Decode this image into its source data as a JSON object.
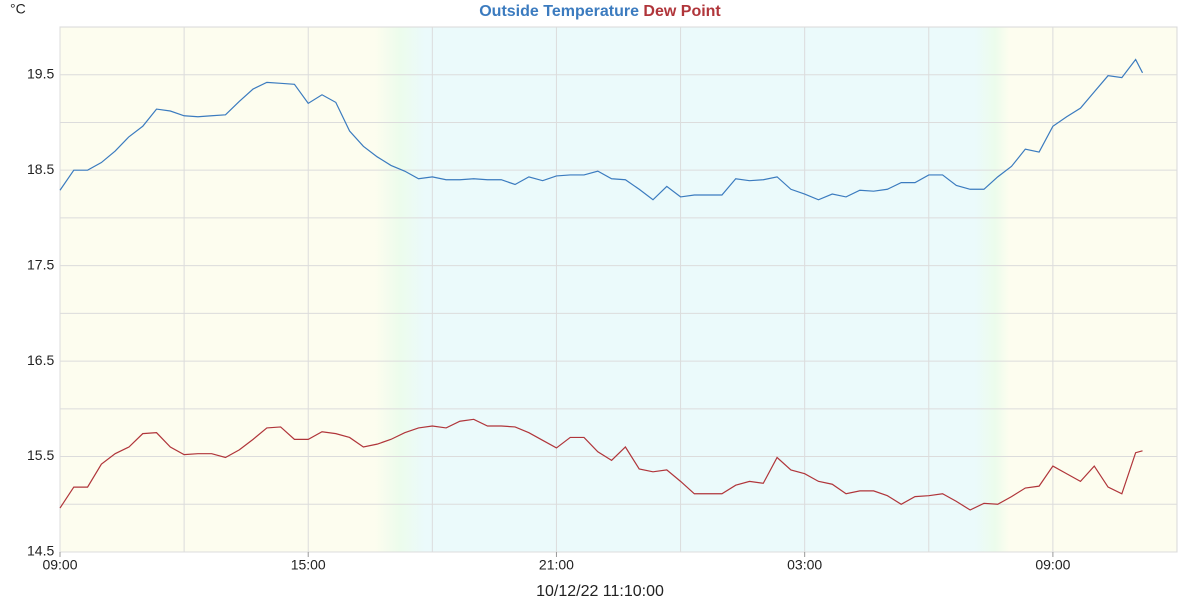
{
  "chart_data": {
    "type": "line",
    "y_unit": "°C",
    "xlabel": "10/12/22 11:10:00",
    "x": [
      0,
      20,
      40,
      60,
      80,
      100,
      120,
      140,
      160,
      180,
      200,
      220,
      240,
      260,
      280,
      300,
      320,
      340,
      360,
      380,
      400,
      420,
      440,
      460,
      480,
      500,
      520,
      540,
      560,
      580,
      600,
      620,
      640,
      660,
      680,
      700,
      720,
      740,
      760,
      780,
      800,
      820,
      840,
      860,
      880,
      900,
      920,
      940,
      960,
      980,
      1000,
      1020,
      1040,
      1060,
      1080,
      1100,
      1120,
      1140,
      1160,
      1180,
      1200,
      1220,
      1240,
      1260,
      1280,
      1300,
      1320,
      1340,
      1360,
      1380,
      1400,
      1420,
      1440,
      1460,
      1480,
      1500,
      1520,
      1540,
      1560,
      1570
    ],
    "series": [
      {
        "name": "Outside Temperature",
        "color": "#3b7bbf",
        "values": [
          18.29,
          18.5,
          18.5,
          18.58,
          18.7,
          18.85,
          18.96,
          19.14,
          19.12,
          19.07,
          19.06,
          19.07,
          19.08,
          19.22,
          19.35,
          19.42,
          19.41,
          19.4,
          19.2,
          19.29,
          19.21,
          18.91,
          18.75,
          18.64,
          18.55,
          18.49,
          18.41,
          18.43,
          18.4,
          18.4,
          18.41,
          18.4,
          18.4,
          18.35,
          18.43,
          18.39,
          18.44,
          18.45,
          18.45,
          18.49,
          18.41,
          18.4,
          18.3,
          18.19,
          18.33,
          18.22,
          18.24,
          18.24,
          18.24,
          18.41,
          18.39,
          18.4,
          18.43,
          18.3,
          18.25,
          18.19,
          18.25,
          18.22,
          18.29,
          18.28,
          18.3,
          18.37,
          18.37,
          18.45,
          18.45,
          18.34,
          18.3,
          18.3,
          18.43,
          18.54,
          18.72,
          18.69,
          18.96,
          19.06,
          19.15,
          19.32,
          19.49,
          19.47,
          19.66,
          19.52
        ]
      },
      {
        "name": "Dew Point",
        "color": "#b0353a",
        "values": [
          14.96,
          15.18,
          15.18,
          15.42,
          15.53,
          15.6,
          15.74,
          15.75,
          15.6,
          15.52,
          15.53,
          15.53,
          15.49,
          15.57,
          15.68,
          15.8,
          15.81,
          15.68,
          15.68,
          15.76,
          15.74,
          15.7,
          15.6,
          15.63,
          15.68,
          15.75,
          15.8,
          15.82,
          15.8,
          15.87,
          15.89,
          15.82,
          15.82,
          15.81,
          15.75,
          15.67,
          15.59,
          15.7,
          15.7,
          15.55,
          15.46,
          15.6,
          15.37,
          15.34,
          15.36,
          15.24,
          15.11,
          15.11,
          15.11,
          15.2,
          15.24,
          15.22,
          15.49,
          15.36,
          15.32,
          15.24,
          15.21,
          15.11,
          15.14,
          15.14,
          15.09,
          15.0,
          15.08,
          15.09,
          15.11,
          15.03,
          14.94,
          15.01,
          15.0,
          15.08,
          15.17,
          15.19,
          15.4,
          15.32,
          15.24,
          15.4,
          15.18,
          15.11,
          15.54,
          15.56
        ]
      }
    ],
    "xlim": [
      0,
      1620
    ],
    "xticks": [
      {
        "value": 0,
        "label": "09:00"
      },
      {
        "value": 360,
        "label": "15:00"
      },
      {
        "value": 720,
        "label": "21:00"
      },
      {
        "value": 1080,
        "label": "03:00"
      },
      {
        "value": 1440,
        "label": "09:00"
      }
    ],
    "xgrid": [
      180,
      540,
      900,
      1260
    ],
    "ylim": [
      14.5,
      20
    ],
    "yticks": [
      14.5,
      15.5,
      16.5,
      17.5,
      18.5,
      19.5
    ],
    "ygrid": [
      15,
      16,
      17,
      18,
      19
    ],
    "grid": true
  }
}
